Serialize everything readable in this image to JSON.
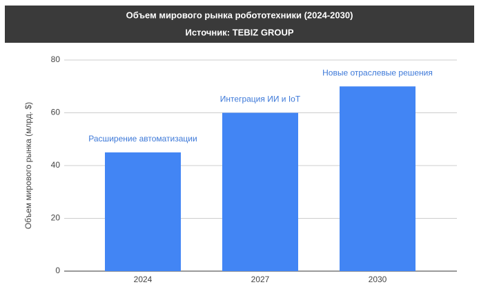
{
  "chart_data": {
    "type": "bar",
    "title": "Объем мирового рынка робототехники (2024-2030)",
    "subtitle": "Источник: TEBIZ GROUP",
    "y_label": "Объем мирового рынка (млрд. $)",
    "categories": [
      "2024",
      "2027",
      "2030"
    ],
    "values": [
      45,
      60,
      70
    ],
    "annotations": [
      "Расширение автоматизации",
      "Интеграция ИИ и IoT",
      "Новые отраслевые решения"
    ],
    "color": "#4285f4",
    "ylim": [
      0,
      80
    ],
    "yticks": [
      0,
      20,
      40,
      60,
      80
    ],
    "grid": true
  }
}
